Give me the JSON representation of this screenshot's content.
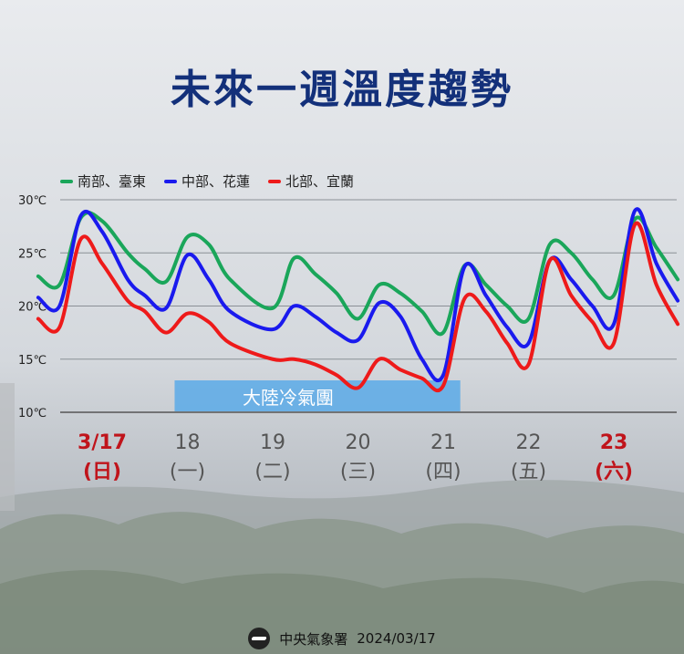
{
  "title": "未來一週溫度趨勢",
  "footer": {
    "org": "中央氣象署",
    "date": "2024/03/17"
  },
  "annotation": {
    "label": "大陸冷氣團",
    "x_start": 0.85,
    "x_end": 4.2
  },
  "colors": {
    "south": "#1aa65a",
    "central": "#1a1aee",
    "north": "#ee1a1a",
    "title": "#13307a",
    "band": "#5aaae8"
  },
  "chart_data": {
    "type": "line",
    "title": "未來一週溫度趨勢",
    "ylim": [
      10,
      30
    ],
    "yticks": [
      "10℃",
      "15℃",
      "20℃",
      "25℃",
      "30℃"
    ],
    "ytick_values": [
      10,
      15,
      20,
      25,
      30
    ],
    "days": [
      {
        "date": "3/17",
        "weekday": "(日)",
        "highlight": true
      },
      {
        "date": "18",
        "weekday": "(一)",
        "highlight": false
      },
      {
        "date": "19",
        "weekday": "(二)",
        "highlight": false
      },
      {
        "date": "20",
        "weekday": "(三)",
        "highlight": false
      },
      {
        "date": "21",
        "weekday": "(四)",
        "highlight": false
      },
      {
        "date": "22",
        "weekday": "(五)",
        "highlight": false
      },
      {
        "date": "23",
        "weekday": "(六)",
        "highlight": true
      }
    ],
    "x_range": [
      -0.75,
      6.75
    ],
    "legend_position": "top-left",
    "series": [
      {
        "name": "南部、臺東",
        "color_key": "south",
        "points": [
          [
            -0.75,
            22.8
          ],
          [
            -0.5,
            22.0
          ],
          [
            -0.25,
            28.3
          ],
          [
            0,
            28.0
          ],
          [
            0.3,
            25.0
          ],
          [
            0.5,
            23.5
          ],
          [
            0.75,
            22.3
          ],
          [
            1,
            26.5
          ],
          [
            1.25,
            25.8
          ],
          [
            1.5,
            22.5
          ],
          [
            2,
            19.8
          ],
          [
            2.25,
            24.5
          ],
          [
            2.5,
            23.0
          ],
          [
            2.75,
            21.2
          ],
          [
            3,
            18.8
          ],
          [
            3.25,
            22.0
          ],
          [
            3.5,
            21.2
          ],
          [
            3.75,
            19.5
          ],
          [
            4,
            17.5
          ],
          [
            4.25,
            23.8
          ],
          [
            4.5,
            22.0
          ],
          [
            4.75,
            20.0
          ],
          [
            5,
            18.8
          ],
          [
            5.25,
            25.8
          ],
          [
            5.5,
            25.0
          ],
          [
            5.75,
            22.5
          ],
          [
            6,
            21.0
          ],
          [
            6.25,
            28.2
          ],
          [
            6.5,
            25.5
          ],
          [
            6.75,
            22.5
          ]
        ]
      },
      {
        "name": "中部、花蓮",
        "color_key": "central",
        "points": [
          [
            -0.75,
            20.8
          ],
          [
            -0.5,
            20.0
          ],
          [
            -0.25,
            28.5
          ],
          [
            0,
            27.0
          ],
          [
            0.3,
            22.5
          ],
          [
            0.5,
            21.0
          ],
          [
            0.75,
            19.8
          ],
          [
            1,
            24.8
          ],
          [
            1.25,
            22.5
          ],
          [
            1.5,
            19.5
          ],
          [
            2,
            17.8
          ],
          [
            2.25,
            20.0
          ],
          [
            2.5,
            19.0
          ],
          [
            2.75,
            17.5
          ],
          [
            3,
            16.8
          ],
          [
            3.25,
            20.3
          ],
          [
            3.5,
            19.0
          ],
          [
            3.75,
            15.0
          ],
          [
            4,
            13.5
          ],
          [
            4.25,
            23.7
          ],
          [
            4.5,
            21.0
          ],
          [
            4.75,
            18.0
          ],
          [
            5,
            16.5
          ],
          [
            5.25,
            24.3
          ],
          [
            5.5,
            22.5
          ],
          [
            5.75,
            20.0
          ],
          [
            6,
            18.3
          ],
          [
            6.25,
            29.0
          ],
          [
            6.5,
            24.0
          ],
          [
            6.75,
            20.5
          ]
        ]
      },
      {
        "name": "北部、宜蘭",
        "color_key": "north",
        "points": [
          [
            -0.75,
            18.8
          ],
          [
            -0.5,
            18.0
          ],
          [
            -0.25,
            26.3
          ],
          [
            0,
            24.0
          ],
          [
            0.3,
            20.5
          ],
          [
            0.5,
            19.5
          ],
          [
            0.75,
            17.5
          ],
          [
            1,
            19.3
          ],
          [
            1.25,
            18.5
          ],
          [
            1.5,
            16.5
          ],
          [
            2,
            15.0
          ],
          [
            2.25,
            15.0
          ],
          [
            2.5,
            14.5
          ],
          [
            2.75,
            13.5
          ],
          [
            3,
            12.3
          ],
          [
            3.25,
            15.0
          ],
          [
            3.5,
            14.0
          ],
          [
            3.75,
            13.2
          ],
          [
            4,
            12.5
          ],
          [
            4.25,
            20.7
          ],
          [
            4.5,
            19.5
          ],
          [
            4.75,
            16.5
          ],
          [
            5,
            14.5
          ],
          [
            5.25,
            24.3
          ],
          [
            5.5,
            21.0
          ],
          [
            5.75,
            18.5
          ],
          [
            6,
            16.5
          ],
          [
            6.25,
            27.7
          ],
          [
            6.5,
            22.0
          ],
          [
            6.75,
            18.3
          ]
        ]
      }
    ]
  }
}
